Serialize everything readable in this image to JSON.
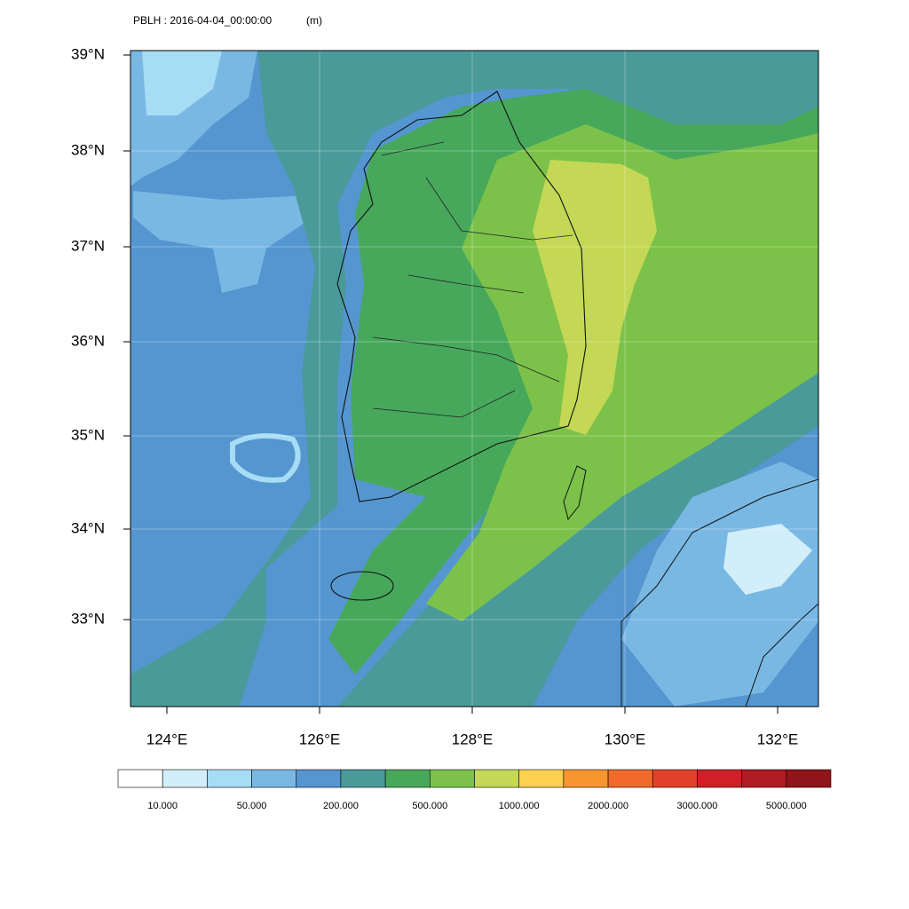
{
  "header": {
    "title": "PBLH : 2016-04-04_00:00:00",
    "units": "(m)"
  },
  "map": {
    "lat_labels": [
      "39°N",
      "38°N",
      "37°N",
      "36°N",
      "35°N",
      "34°N",
      "33°N"
    ],
    "lon_labels": [
      "124°E",
      "126°E",
      "128°E",
      "130°E",
      "132°E"
    ]
  },
  "colorbar": {
    "colors": [
      "#ffffff",
      "#d2eef9",
      "#a6dcf4",
      "#7ab8e4",
      "#5596d0",
      "#4a9a9a",
      "#47a85c",
      "#7cc24a",
      "#c4d855",
      "#fdd14f",
      "#f7952f",
      "#f26a2a",
      "#e3402a",
      "#d01f27",
      "#b01a22",
      "#901419"
    ],
    "labels": [
      "10.000",
      "50.000",
      "200.000",
      "500.000",
      "1000.000",
      "2000.000",
      "3000.000",
      "5000.000"
    ]
  }
}
